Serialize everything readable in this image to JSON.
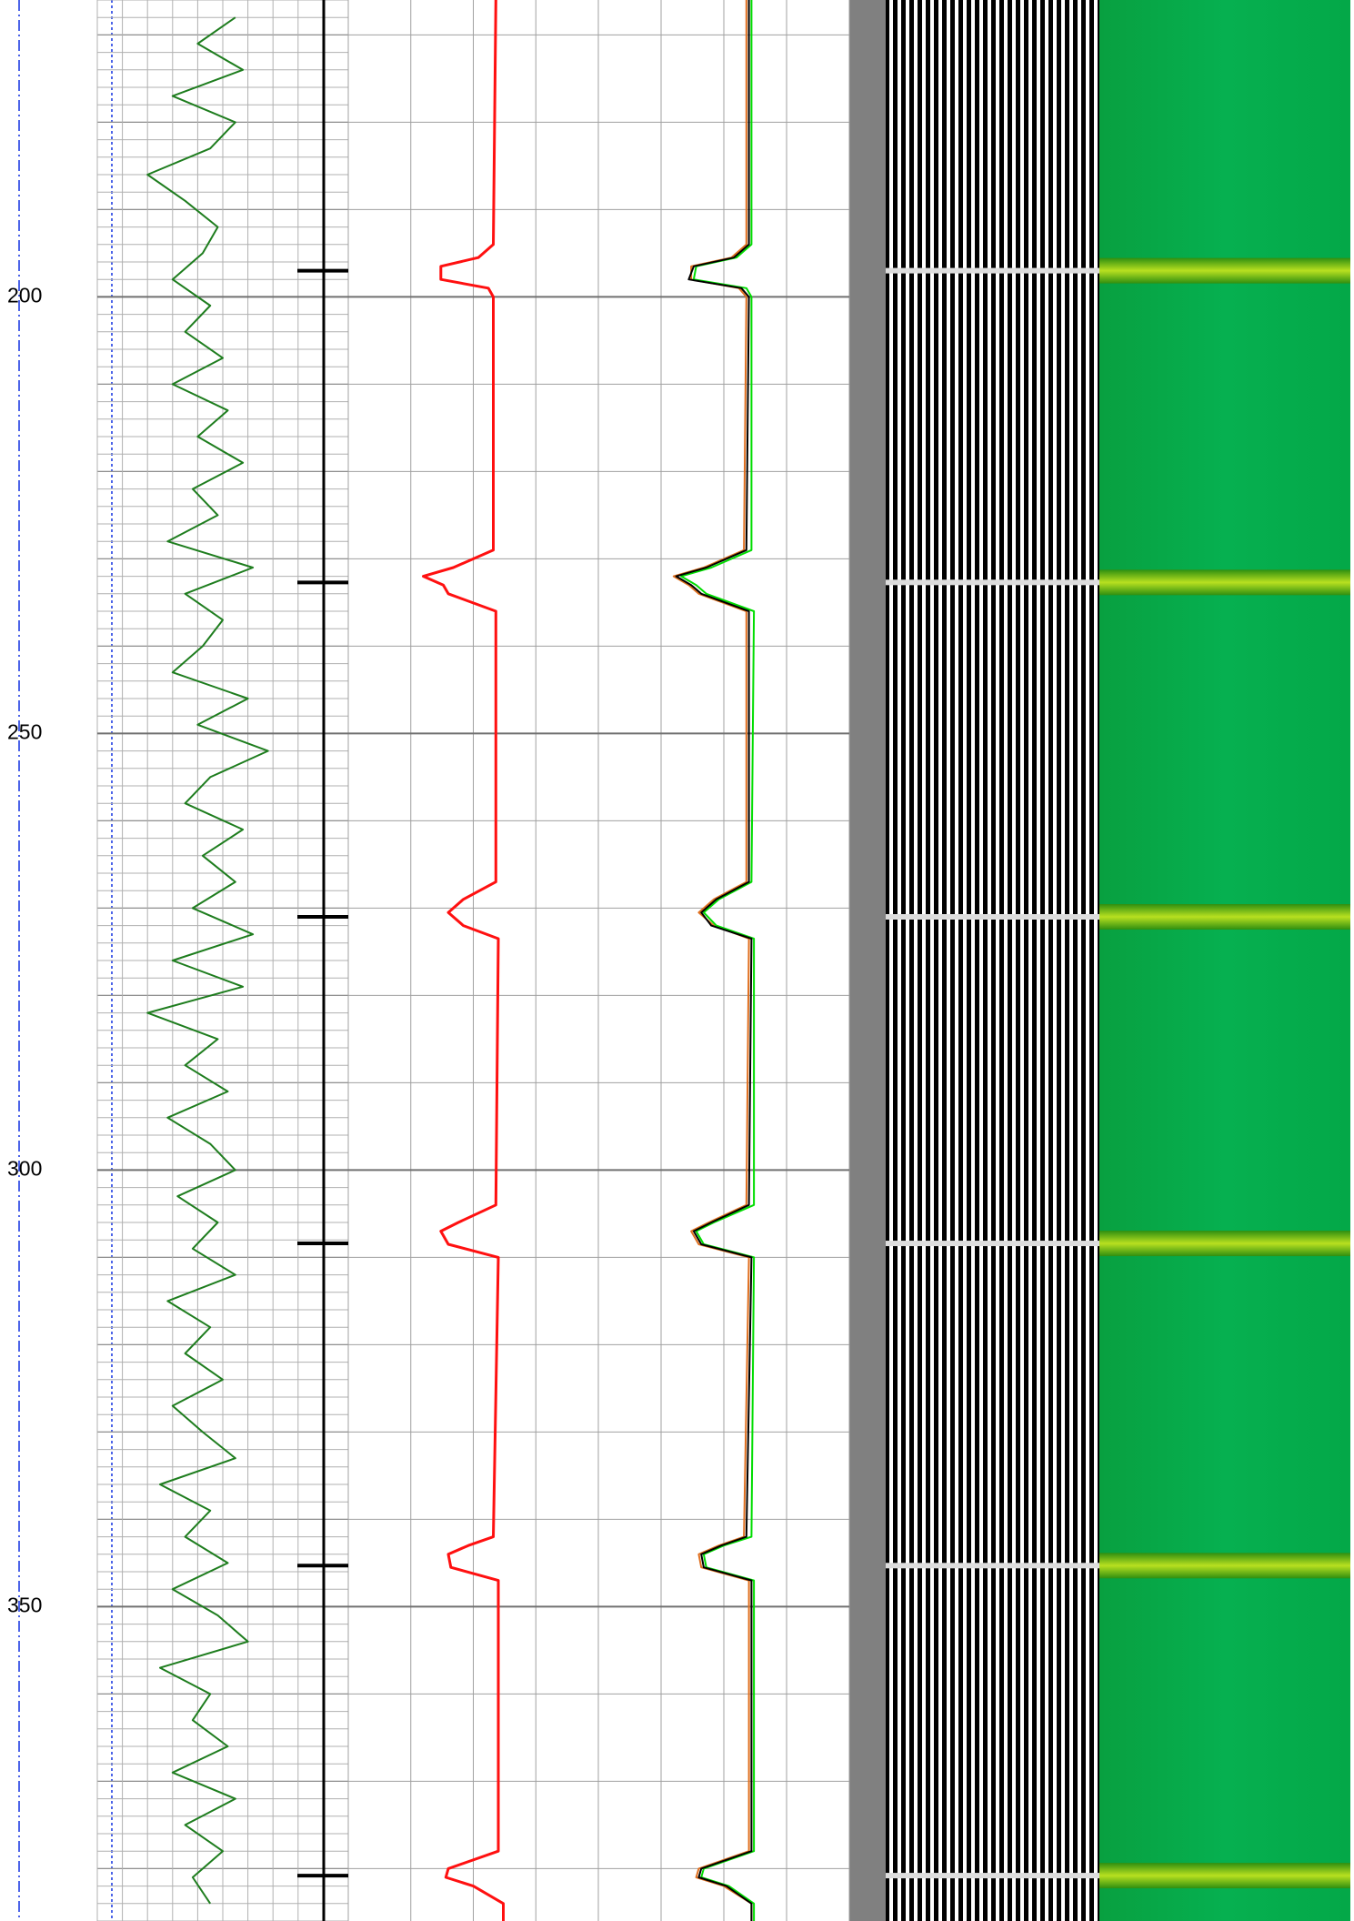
{
  "chart_data": {
    "type": "well-log",
    "ylim": [
      166,
      386
    ],
    "yticks": [
      200,
      250,
      300,
      350
    ],
    "grid": true,
    "events": [
      197,
      232.7,
      271,
      308.4,
      345.3,
      380.8
    ],
    "tracks": [
      {
        "xlim": [
          0,
          100
        ],
        "series": [
          {
            "color": "#1e7d1e",
            "x": [
              168,
              171,
              174,
              177,
              180,
              183,
              186,
              189,
              192,
              195,
              198,
              201,
              204,
              207,
              210,
              213,
              216,
              219,
              222,
              225,
              228,
              231,
              234,
              237,
              240,
              243,
              246,
              249,
              252,
              255,
              258,
              261,
              264,
              267,
              270,
              273,
              276,
              279,
              282,
              285,
              288,
              291,
              294,
              297,
              300,
              303,
              306,
              309,
              312,
              315,
              318,
              321,
              324,
              327,
              330,
              333,
              336,
              339,
              342,
              345,
              348,
              351,
              354,
              357,
              360,
              363,
              366,
              369,
              372,
              375,
              378,
              381,
              384
            ],
            "values": [
              55,
              40,
              58,
              30,
              55,
              45,
              20,
              35,
              48,
              42,
              30,
              45,
              35,
              50,
              30,
              52,
              40,
              58,
              38,
              48,
              28,
              62,
              35,
              50,
              42,
              30,
              60,
              40,
              68,
              45,
              35,
              58,
              42,
              55,
              38,
              62,
              30,
              58,
              20,
              48,
              35,
              52,
              28,
              45,
              55,
              32,
              48,
              38,
              55,
              28,
              45,
              35,
              50,
              30,
              42,
              55,
              25,
              45,
              35,
              52,
              30,
              48,
              60,
              25,
              45,
              38,
              52,
              30,
              55,
              35,
              50,
              38,
              45
            ]
          }
        ]
      },
      {
        "xlim": [
          0,
          100
        ],
        "series": [
          {
            "color": "#ff1010",
            "x": [
              166,
              194,
              195.5,
              196.5,
              198,
              199,
              200,
              229,
              231,
              232,
              233,
              234,
              236,
              267,
              269,
              270.5,
              272,
              273.5,
              304,
              306,
              307,
              308.5,
              310,
              342,
              343,
              344,
              345.5,
              347,
              378,
              380,
              381,
              382,
              384,
              386
            ],
            "values": [
              59,
              58,
              52,
              37,
              37,
              56,
              58,
              58,
              42,
              30,
              38,
              40,
              59,
              59,
              46,
              40,
              46,
              60,
              59,
              44,
              37,
              40,
              60,
              58,
              48,
              40,
              41,
              60,
              60,
              40,
              39,
              50,
              62,
              62
            ]
          }
        ]
      },
      {
        "xlim": [
          0,
          100
        ],
        "series": [
          {
            "color": "#e07020",
            "x": [
              166,
              194,
              195.5,
              196.5,
              198,
              199,
              200,
              229,
              231,
              232,
              233,
              234,
              236,
              267,
              269,
              270.5,
              272,
              273.5,
              304,
              306,
              307,
              308.5,
              310,
              342,
              343,
              344,
              345.5,
              347,
              378,
              380,
              381,
              382,
              384,
              386
            ],
            "values": [
              59,
              59,
              53,
              37,
              37,
              56,
              59,
              58,
              42,
              30,
              36,
              40,
              59,
              59,
              46,
              40,
              46,
              60,
              59,
              44,
              37,
              40,
              60,
              58,
              48,
              40,
              41,
              60,
              60,
              40,
              39,
              50,
              61,
              61
            ]
          },
          {
            "color": "#00dd00",
            "x": [
              166,
              194,
              195.5,
              196.5,
              198,
              199,
              200,
              229,
              231,
              232,
              233,
              234,
              236,
              267,
              269,
              270.5,
              272,
              273.5,
              304,
              306,
              307,
              308.5,
              310,
              342,
              343,
              344,
              345.5,
              347,
              378,
              380,
              381,
              382,
              384,
              386
            ],
            "values": [
              61,
              61,
              55,
              39,
              38,
              59,
              61,
              61,
              45,
              33,
              39,
              43,
              62,
              61,
              48,
              42,
              47,
              62,
              62,
              46,
              39,
              42,
              62,
              61,
              50,
              42,
              43,
              62,
              62,
              42,
              41,
              52,
              62,
              62
            ]
          },
          {
            "color": "#000000",
            "x": [
              166,
              194,
              195.5,
              196.5,
              198,
              199,
              200,
              229,
              231,
              232,
              233,
              234,
              236,
              267,
              269,
              270.5,
              272,
              273.5,
              304,
              306,
              307,
              308.5,
              310,
              342,
              343,
              344,
              345.5,
              347,
              378,
              380,
              381,
              382,
              384,
              386
            ],
            "values": [
              60,
              60,
              54,
              38,
              36,
              57,
              60,
              59,
              43,
              31,
              37,
              41,
              60,
              60,
              47,
              41,
              45,
              61,
              60,
              45,
              38,
              41,
              61,
              59,
              49,
              41,
              42,
              61,
              61,
              41,
              40,
              51,
              61,
              61
            ]
          }
        ]
      }
    ]
  }
}
